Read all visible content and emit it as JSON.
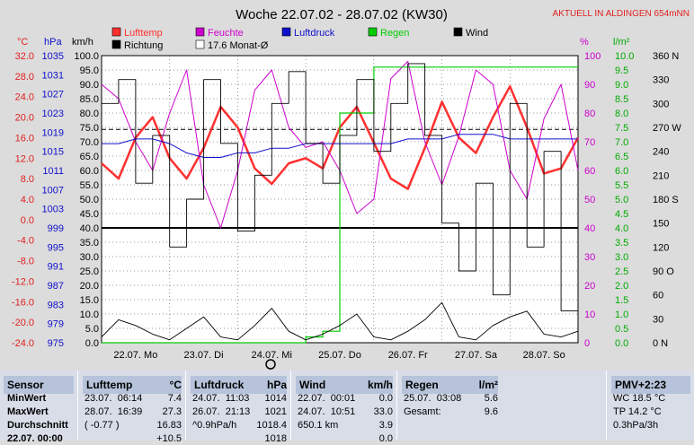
{
  "colors": {
    "lufttemp": "#ff3030",
    "feuchte": "#cc00cc",
    "luftdruck": "#1010cc",
    "regen": "#00cc00",
    "wind": "#000000",
    "richtung": "#000000",
    "plot_bg": "#ffffff",
    "grid": "#000000",
    "page_bg": "#dcdcdc",
    "panel_bg": "#d8dde8",
    "panel_hdr": "#b6c3da"
  },
  "chart_data": {
    "type": "line",
    "title": "Woche 22.07.02 - 28.07.02 (KW30)",
    "badge": "AKTUELL IN ALDINGEN 654mNN",
    "legend": [
      {
        "name": "Lufttemp",
        "color": "#ff3030"
      },
      {
        "name": "Feuchte",
        "color": "#cc00cc"
      },
      {
        "name": "Luftdruck",
        "color": "#1010cc"
      },
      {
        "name": "Regen",
        "color": "#00cc00"
      },
      {
        "name": "Wind",
        "color": "#000000"
      },
      {
        "name": "Richtung",
        "color": "#000000"
      },
      {
        "name": "17.6 Monat-Ø",
        "color": "#000000",
        "outline": true
      }
    ],
    "axes_units": {
      "temp": "°C",
      "pressure": "hPa",
      "wind": "km/h",
      "humidity": "%",
      "rain": "l/m²",
      "direction": "°"
    },
    "axes": {
      "temp_ticks": [
        "32.0",
        "28.0",
        "24.0",
        "20.0",
        "16.0",
        "12.0",
        "8.0",
        "4.0",
        "0.0",
        "-4.0",
        "-8.0",
        "-12.0",
        "-16.0",
        "-20.0",
        "-24.0"
      ],
      "pressure_ticks": [
        "1035",
        "1031",
        "1027",
        "1023",
        "1019",
        "1015",
        "1011",
        "1007",
        "1003",
        "999",
        "995",
        "991",
        "987",
        "983",
        "979",
        "975"
      ],
      "wind_ticks": [
        "100.0",
        "95.0",
        "90.0",
        "85.0",
        "80.0",
        "75.0",
        "70.0",
        "65.0",
        "60.0",
        "55.0",
        "50.0",
        "45.0",
        "40.0",
        "35.0",
        "30.0",
        "25.0",
        "20.0",
        "15.0",
        "10.0",
        "5.0",
        "0.0"
      ],
      "humidity_ticks": [
        "100",
        "90",
        "80",
        "70",
        "60",
        "50",
        "40",
        "30",
        "20",
        "10",
        "0"
      ],
      "rain_ticks": [
        "10.0",
        "9.5",
        "9.0",
        "8.5",
        "8.0",
        "7.5",
        "7.0",
        "6.5",
        "6.0",
        "5.5",
        "5.0",
        "4.5",
        "4.0",
        "3.5",
        "3.0",
        "2.5",
        "2.0",
        "1.5",
        "1.0",
        "0.5",
        "0.0"
      ],
      "direction_ticks": [
        "360 N",
        "330",
        "300",
        "270 W",
        "240",
        "210",
        "180 S",
        "150",
        "120",
        "90 O",
        "60",
        "30",
        "0 N"
      ],
      "x_days": [
        "22.07. Mo",
        "23.07. Di",
        "24.07. Mi",
        "25.07. Do",
        "26.07. Fr",
        "27.07. Sa",
        "28.07. So"
      ],
      "temp_range": [
        -24,
        32
      ],
      "wind_range": [
        0,
        100
      ],
      "humidity_range": [
        0,
        100
      ],
      "rain_range": [
        0,
        10
      ],
      "pressure_range": [
        975,
        1037
      ],
      "grid": true
    },
    "month_avg": 17.6,
    "hours": [
      0,
      6,
      12,
      18,
      24,
      30,
      36,
      42,
      48,
      54,
      60,
      66,
      72,
      78,
      84,
      90,
      96,
      102,
      108,
      114,
      120,
      126,
      132,
      138,
      144,
      150,
      156,
      162,
      168
    ],
    "series": [
      {
        "name": "Lufttemp",
        "unit": "°C",
        "values": [
          11,
          8,
          16,
          20,
          12,
          8,
          14,
          22,
          18,
          10,
          7,
          11,
          12,
          10,
          18,
          22,
          15,
          8,
          6,
          14,
          23,
          16,
          13,
          20,
          26,
          18,
          9,
          10,
          16
        ]
      },
      {
        "name": "Feuchte",
        "unit": "%",
        "values": [
          90,
          85,
          70,
          60,
          80,
          95,
          55,
          40,
          60,
          88,
          95,
          75,
          68,
          70,
          60,
          45,
          50,
          92,
          98,
          70,
          55,
          72,
          95,
          90,
          60,
          50,
          78,
          90,
          60
        ]
      },
      {
        "name": "Luftdruck",
        "unit": "hPa",
        "values": [
          1018,
          1018,
          1019,
          1019,
          1018,
          1016,
          1015,
          1015,
          1016,
          1016,
          1017,
          1017,
          1018,
          1018,
          1018,
          1018,
          1018,
          1018,
          1019,
          1019,
          1019,
          1020,
          1020,
          1020,
          1019,
          1019,
          1019,
          1019,
          1019
        ]
      },
      {
        "name": "Regen",
        "unit": "l/m²",
        "values": [
          0,
          0,
          0,
          0,
          0,
          0,
          0,
          0,
          0,
          0,
          0,
          0,
          0.2,
          0.4,
          8.0,
          8.0,
          9.6,
          9.6,
          9.6,
          9.6,
          9.6,
          9.6,
          9.6,
          9.6,
          9.6,
          9.6,
          9.6,
          9.6,
          9.6
        ]
      },
      {
        "name": "Wind",
        "unit": "km/h",
        "values": [
          2,
          8,
          6,
          3,
          1,
          5,
          9,
          2,
          1,
          6,
          12,
          4,
          1,
          3,
          6,
          10,
          2,
          1,
          4,
          8,
          14,
          2,
          1,
          6,
          9,
          11,
          3,
          2,
          4
        ]
      },
      {
        "name": "Richtung",
        "unit": "°",
        "values": [
          300,
          330,
          200,
          260,
          120,
          180,
          330,
          250,
          140,
          210,
          300,
          340,
          250,
          200,
          260,
          330,
          240,
          300,
          350,
          260,
          150,
          90,
          200,
          60,
          300,
          120,
          240,
          40,
          150
        ]
      }
    ]
  },
  "stats": {
    "columns": [
      {
        "key": "sensor",
        "header": "Sensor"
      },
      {
        "key": "lufttemp",
        "header": "Lufttemp",
        "unit": "°C"
      },
      {
        "key": "luftdruck",
        "header": "Luftdruck",
        "unit": "hPa"
      },
      {
        "key": "wind",
        "header": "Wind",
        "unit": "km/h"
      },
      {
        "key": "regen",
        "header": "Regen",
        "unit": "l/m²"
      },
      {
        "key": "pmv",
        "header": "PMV+2:23"
      }
    ],
    "sensor_rows": [
      "MinWert",
      "MaxWert",
      "Durchschnitt",
      "22.07. 00:00"
    ],
    "lufttemp": [
      [
        "23.07.  06:14",
        "7.4"
      ],
      [
        "28.07.  16:39",
        "27.3"
      ],
      [
        "( -0.77 )",
        "16.83"
      ],
      [
        "",
        "+10.5"
      ]
    ],
    "luftdruck": [
      [
        "24.07.  11:03",
        "1014"
      ],
      [
        "26.07.  21:13",
        "1021"
      ],
      [
        "^0.9hPa/h",
        "1018.4"
      ],
      [
        "",
        "1018"
      ]
    ],
    "wind": [
      [
        "22.07.  00:01",
        "0.0"
      ],
      [
        "24.07.  10:51",
        "33.0"
      ],
      [
        "650.1 km",
        "3.9"
      ],
      [
        "",
        "0.0"
      ]
    ],
    "regen": [
      [
        "25.07.  03:08",
        "5.6"
      ],
      [
        "Gesamt:",
        "9.6"
      ],
      [
        "",
        ""
      ],
      [
        "",
        ""
      ]
    ],
    "pmv": [
      "WC 18.5 °C",
      "TP 14.2 °C",
      "0.3hPa/3h",
      ""
    ]
  },
  "mi_marker": "24.07. Mi"
}
